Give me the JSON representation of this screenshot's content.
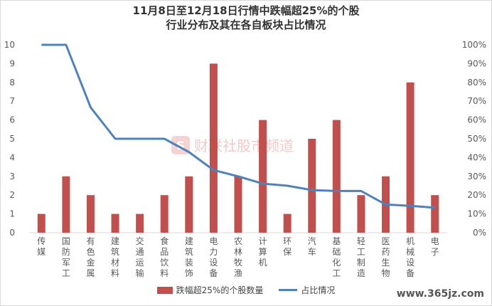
{
  "title": {
    "line1": "11月8日至12月18日行情中跌幅超25%的个股",
    "line2": "行业分布及其在各自板块占比情况"
  },
  "watermark": {
    "logo_text": "财联社股市频道",
    "site": "www.365jz.com"
  },
  "colors": {
    "bar": "#c0504d",
    "line": "#4f81bd",
    "axis_text": "#595959",
    "grid": "#d9d9d9"
  },
  "chart_data": {
    "type": "bar",
    "categories": [
      "传媒",
      "国防军工",
      "有色金属",
      "建筑材料",
      "交通运输",
      "食品饮料",
      "建筑装饰",
      "电力设备",
      "农林牧渔",
      "计算机",
      "环保",
      "汽车",
      "基础化工",
      "轻工制造",
      "医药生物",
      "机械设备",
      "电子"
    ],
    "series": [
      {
        "name": "跌幅超25%的个股数量",
        "type": "bar",
        "axis": "left",
        "values": [
          1,
          3,
          2,
          1,
          1,
          2,
          3,
          9,
          3,
          6,
          1,
          5,
          6,
          2,
          3,
          8,
          2
        ]
      },
      {
        "name": "占比情况",
        "type": "line",
        "axis": "right",
        "values": [
          100,
          100,
          66.7,
          50,
          50,
          50,
          42.9,
          33.3,
          30,
          26.1,
          25,
          22.7,
          22.2,
          22.2,
          15,
          14.3,
          13.3
        ]
      }
    ],
    "y_left": {
      "range": [
        0,
        10
      ],
      "ticks": [
        "0",
        "1",
        "2",
        "3",
        "4",
        "5",
        "6",
        "7",
        "8",
        "9",
        "10"
      ]
    },
    "y_right": {
      "range": [
        0,
        100
      ],
      "ticks": [
        "0%",
        "10%",
        "20%",
        "30%",
        "40%",
        "50%",
        "60%",
        "70%",
        "80%",
        "90%",
        "100%"
      ]
    },
    "grid": false,
    "legend": "bottom"
  }
}
